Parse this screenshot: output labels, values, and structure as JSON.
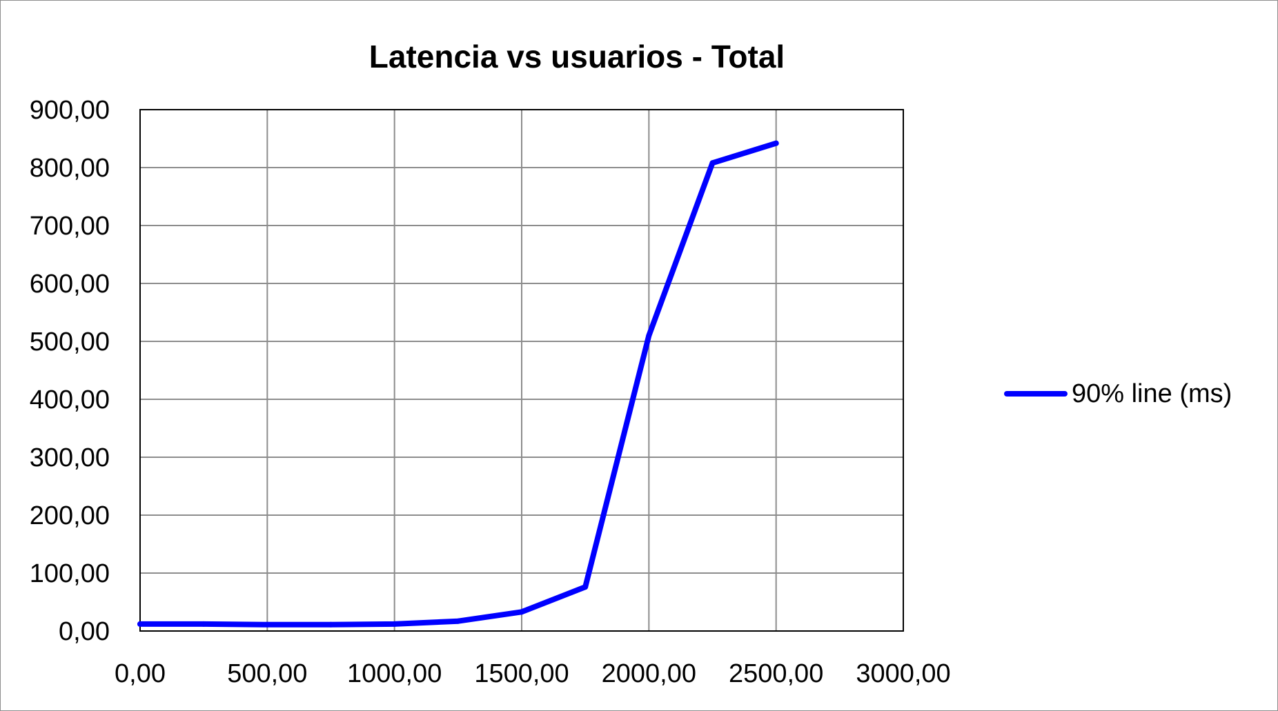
{
  "chart_data": {
    "type": "line",
    "title": "Latencia vs usuarios - Total",
    "xlabel": "",
    "ylabel": "",
    "xlim": [
      0,
      3000
    ],
    "ylim": [
      0,
      900
    ],
    "x_ticks": [
      "0,00",
      "500,00",
      "1000,00",
      "1500,00",
      "2000,00",
      "2500,00",
      "3000,00"
    ],
    "x_tick_values": [
      0,
      500,
      1000,
      1500,
      2000,
      2500,
      3000
    ],
    "y_ticks": [
      "0,00",
      "100,00",
      "200,00",
      "300,00",
      "400,00",
      "500,00",
      "600,00",
      "700,00",
      "800,00",
      "900,00"
    ],
    "y_tick_values": [
      0,
      100,
      200,
      300,
      400,
      500,
      600,
      700,
      800,
      900
    ],
    "grid": true,
    "legend_position": "right",
    "series": [
      {
        "name": "90% line (ms)",
        "color": "#0000ff",
        "x": [
          0,
          250,
          500,
          750,
          1000,
          1250,
          1500,
          1750,
          2000,
          2250,
          2500
        ],
        "y": [
          12,
          12,
          11,
          11,
          12,
          17,
          33,
          76,
          510,
          808,
          842
        ]
      }
    ]
  }
}
